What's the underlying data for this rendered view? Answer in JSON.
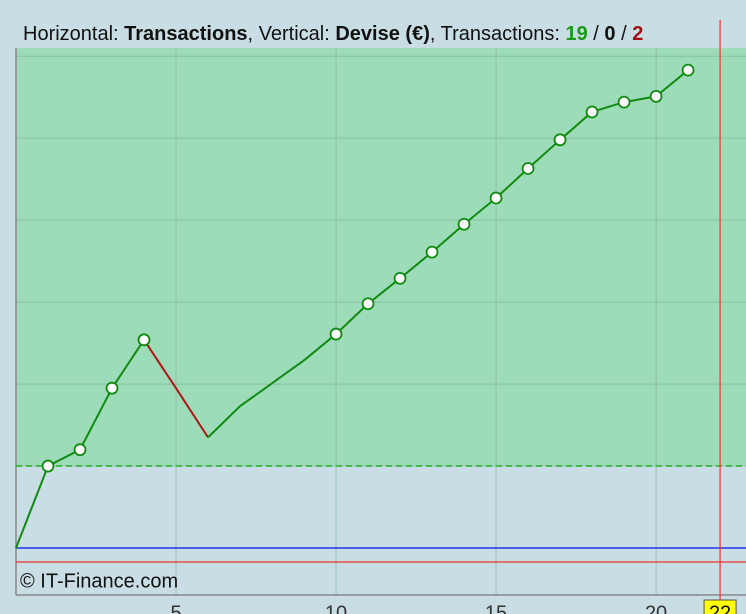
{
  "chart_data": {
    "type": "line",
    "title_parts": [
      "Horizontal: ",
      "Transactions",
      ", Vertical: ",
      "Devise (€)",
      ", Transactions: ",
      "19",
      " / ",
      "0",
      " / ",
      "2"
    ],
    "footer": "© IT-Finance.com",
    "x": [
      0,
      1,
      2,
      3,
      4,
      5,
      6,
      7,
      8,
      9,
      10,
      11,
      12,
      13,
      14,
      15,
      16,
      17,
      18,
      19,
      20,
      21
    ],
    "series": [
      {
        "name": "Transactions",
        "color": "#118a11",
        "loss_color": "#b01515",
        "values": [
          0,
          1.0,
          1.2,
          1.95,
          2.54,
          1.95,
          1.35,
          1.73,
          2.01,
          2.29,
          2.61,
          2.98,
          3.29,
          3.61,
          3.95,
          4.27,
          4.63,
          4.98,
          5.32,
          5.44,
          5.51,
          5.83
        ],
        "markers": [
          false,
          true,
          true,
          true,
          true,
          false,
          false,
          false,
          false,
          false,
          true,
          true,
          true,
          true,
          true,
          true,
          true,
          true,
          true,
          true,
          true,
          true
        ],
        "losses": [
          5,
          6
        ]
      }
    ],
    "xlim": [
      0,
      22.81
    ],
    "ylim": [
      -0.573,
      6.1
    ],
    "xticks": [
      5,
      10,
      15,
      20
    ],
    "yticks": [
      0,
      1,
      2,
      3,
      4,
      5,
      6
    ],
    "grid": true,
    "target_line": 1,
    "zero_line": 0,
    "stop_line": -0.17,
    "current_x": 22,
    "current_label": "22",
    "profit_color": "#9ddcb8",
    "base_color": "#c9dde4"
  }
}
